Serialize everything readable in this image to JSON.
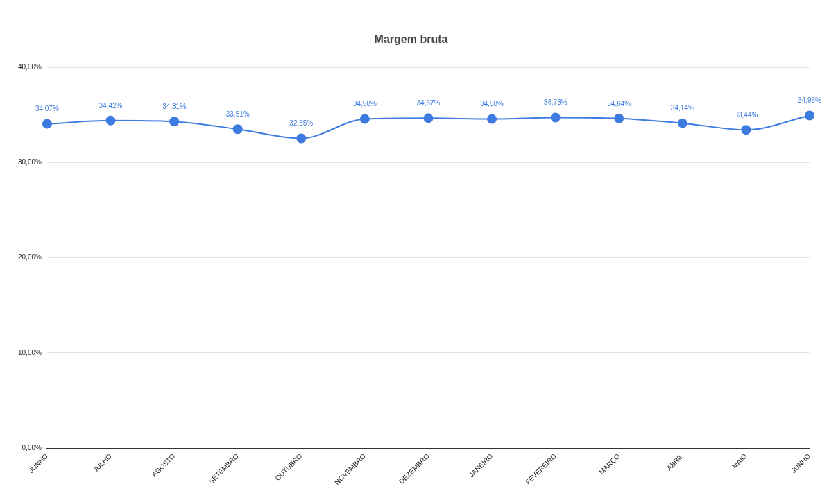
{
  "chart_data": {
    "type": "line",
    "title": "Margem bruta",
    "categories": [
      "JUNHO",
      "JULHO",
      "AGOSTO",
      "SETEMBRO",
      "OUTUBRO",
      "NOVEMBRO",
      "DEZEMBRO",
      "JANEIRO",
      "FEVEREIRO",
      "MARÇO",
      "ABRIL",
      "MAIO",
      "JUNHO"
    ],
    "series": [
      {
        "color": "#3d7be0",
        "values": [
          34.07,
          34.42,
          34.31,
          33.51,
          32.55,
          34.58,
          34.67,
          34.58,
          34.73,
          34.64,
          34.14,
          33.44,
          34.95
        ],
        "value_labels": [
          "34,07%",
          "34,42%",
          "34,31%",
          "33,51%",
          "32,55%",
          "34,58%",
          "34,67%",
          "34,58%",
          "34,73%",
          "34,64%",
          "34,14%",
          "33,44%",
          "34,95%"
        ]
      }
    ],
    "ylim": [
      0,
      40
    ],
    "yticks": [
      {
        "value": 0,
        "label": "0,00%"
      },
      {
        "value": 10,
        "label": "10,00%"
      },
      {
        "value": 20,
        "label": "20,00%"
      },
      {
        "value": 30,
        "label": "30,00%"
      },
      {
        "value": 40,
        "label": "40,00%"
      }
    ],
    "grid": "y",
    "legend": false,
    "marker": "circle",
    "line_style": "solid"
  }
}
